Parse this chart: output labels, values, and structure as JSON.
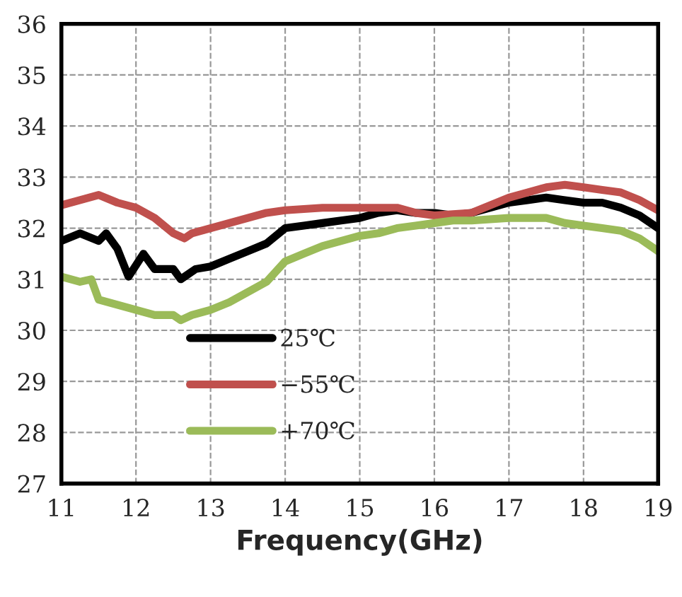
{
  "chart_data": {
    "type": "line",
    "xlabel": "Frequency(GHz)",
    "xlim": [
      11,
      19
    ],
    "xticks": [
      11,
      12,
      13,
      14,
      15,
      16,
      17,
      18,
      19
    ],
    "ylim": [
      27,
      36
    ],
    "yticks": [
      27,
      28,
      29,
      30,
      31,
      32,
      33,
      34,
      35,
      36
    ],
    "grid": true,
    "legend": "bottom left",
    "line_style": "solid",
    "marker": "none",
    "series": [
      {
        "name": "25℃",
        "color": "#000000",
        "x": [
          11.0,
          11.25,
          11.5,
          11.6,
          11.75,
          11.9,
          12.1,
          12.25,
          12.5,
          12.6,
          12.8,
          13.0,
          13.25,
          13.5,
          13.75,
          14.0,
          14.25,
          14.5,
          14.75,
          15.0,
          15.25,
          15.5,
          15.75,
          16.0,
          16.25,
          16.5,
          16.75,
          17.0,
          17.25,
          17.5,
          17.75,
          18.0,
          18.25,
          18.5,
          18.75,
          19.0
        ],
        "values": [
          31.75,
          31.9,
          31.75,
          31.9,
          31.6,
          31.05,
          31.5,
          31.2,
          31.2,
          31.0,
          31.2,
          31.25,
          31.4,
          31.55,
          31.7,
          32.0,
          32.05,
          32.1,
          32.15,
          32.2,
          32.3,
          32.35,
          32.3,
          32.3,
          32.25,
          32.3,
          32.4,
          32.5,
          32.55,
          32.6,
          32.55,
          32.5,
          32.5,
          32.4,
          32.25,
          32.0
        ]
      },
      {
        "name": "−55℃",
        "color": "#c0504d",
        "x": [
          11.0,
          11.25,
          11.5,
          11.75,
          12.0,
          12.25,
          12.5,
          12.65,
          12.75,
          13.0,
          13.25,
          13.5,
          13.75,
          14.0,
          14.5,
          15.0,
          15.5,
          15.75,
          16.0,
          16.5,
          16.75,
          17.0,
          17.25,
          17.5,
          17.75,
          18.0,
          18.25,
          18.5,
          18.75,
          19.0
        ],
        "values": [
          32.45,
          32.55,
          32.65,
          32.5,
          32.4,
          32.2,
          31.9,
          31.8,
          31.9,
          32.0,
          32.1,
          32.2,
          32.3,
          32.35,
          32.4,
          32.4,
          32.4,
          32.3,
          32.25,
          32.3,
          32.45,
          32.6,
          32.7,
          32.8,
          32.85,
          32.8,
          32.75,
          32.7,
          32.55,
          32.35
        ]
      },
      {
        "name": "+70℃",
        "color": "#9bbb59",
        "x": [
          11.0,
          11.25,
          11.4,
          11.5,
          11.75,
          12.0,
          12.25,
          12.5,
          12.6,
          12.75,
          13.0,
          13.25,
          13.5,
          13.75,
          14.0,
          14.25,
          14.5,
          14.75,
          15.0,
          15.25,
          15.5,
          15.75,
          16.0,
          16.25,
          16.5,
          17.0,
          17.5,
          17.75,
          18.0,
          18.25,
          18.5,
          18.75,
          19.0
        ],
        "values": [
          31.05,
          30.95,
          31.0,
          30.6,
          30.5,
          30.4,
          30.3,
          30.3,
          30.2,
          30.3,
          30.4,
          30.55,
          30.75,
          30.95,
          31.35,
          31.5,
          31.65,
          31.75,
          31.85,
          31.9,
          32.0,
          32.05,
          32.1,
          32.15,
          32.15,
          32.2,
          32.2,
          32.1,
          32.05,
          32.0,
          31.95,
          31.8,
          31.55
        ]
      }
    ]
  }
}
